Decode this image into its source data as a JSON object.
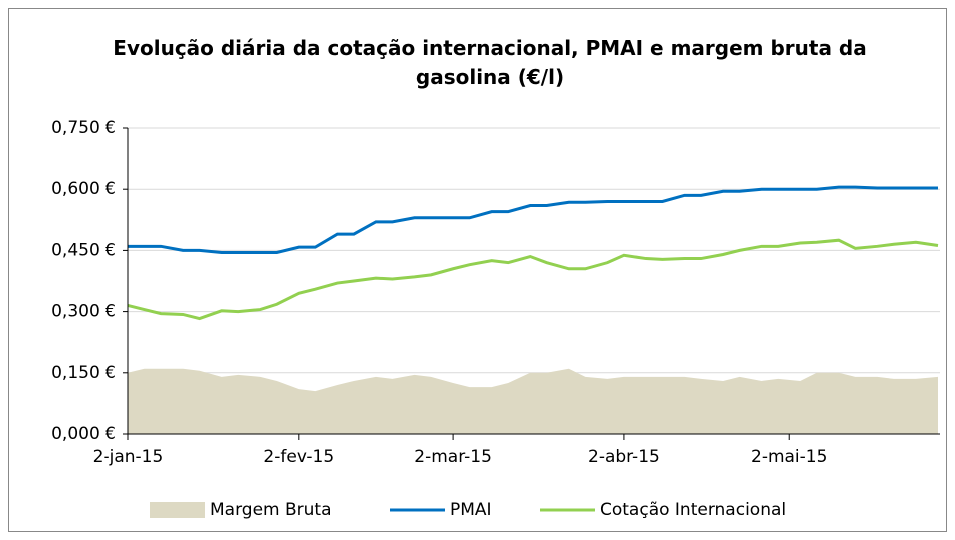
{
  "chart_data": {
    "type": "line",
    "title": "Evolução diária da cotação internacional, PMAI e margem bruta da gasolina (€/l)",
    "x": [
      "2015-01-02",
      "2015-01-05",
      "2015-01-08",
      "2015-01-12",
      "2015-01-15",
      "2015-01-19",
      "2015-01-22",
      "2015-01-26",
      "2015-01-29",
      "2015-02-02",
      "2015-02-05",
      "2015-02-09",
      "2015-02-12",
      "2015-02-16",
      "2015-02-19",
      "2015-02-23",
      "2015-02-26",
      "2015-03-02",
      "2015-03-05",
      "2015-03-09",
      "2015-03-12",
      "2015-03-16",
      "2015-03-19",
      "2015-03-23",
      "2015-03-26",
      "2015-03-30",
      "2015-04-02",
      "2015-04-06",
      "2015-04-09",
      "2015-04-13",
      "2015-04-16",
      "2015-04-20",
      "2015-04-23",
      "2015-04-27",
      "2015-04-30",
      "2015-05-04",
      "2015-05-07",
      "2015-05-11",
      "2015-05-14",
      "2015-05-18",
      "2015-05-21",
      "2015-05-25",
      "2015-05-29"
    ],
    "series": [
      {
        "name": "Margem Bruta",
        "kind": "area",
        "color": "#ddd9c3",
        "values": [
          0.15,
          0.16,
          0.16,
          0.16,
          0.155,
          0.14,
          0.145,
          0.14,
          0.13,
          0.11,
          0.105,
          0.12,
          0.13,
          0.14,
          0.135,
          0.145,
          0.14,
          0.125,
          0.115,
          0.115,
          0.125,
          0.15,
          0.15,
          0.16,
          0.14,
          0.135,
          0.14,
          0.14,
          0.14,
          0.14,
          0.135,
          0.13,
          0.14,
          0.13,
          0.135,
          0.13,
          0.15,
          0.15,
          0.14,
          0.14,
          0.135,
          0.135,
          0.14
        ]
      },
      {
        "name": "PMAI",
        "kind": "line",
        "color": "#0070c0",
        "values": [
          0.46,
          0.46,
          0.46,
          0.45,
          0.45,
          0.445,
          0.445,
          0.445,
          0.445,
          0.458,
          0.458,
          0.49,
          0.49,
          0.52,
          0.52,
          0.53,
          0.53,
          0.53,
          0.53,
          0.545,
          0.545,
          0.56,
          0.56,
          0.568,
          0.568,
          0.57,
          0.57,
          0.57,
          0.57,
          0.585,
          0.585,
          0.595,
          0.595,
          0.6,
          0.6,
          0.6,
          0.6,
          0.605,
          0.605,
          0.603,
          0.603,
          0.603,
          0.603
        ]
      },
      {
        "name": "Cotação Internacional",
        "kind": "line",
        "color": "#92d050",
        "values": [
          0.315,
          0.305,
          0.295,
          0.293,
          0.283,
          0.302,
          0.3,
          0.305,
          0.318,
          0.345,
          0.355,
          0.37,
          0.375,
          0.382,
          0.38,
          0.385,
          0.39,
          0.405,
          0.415,
          0.425,
          0.42,
          0.435,
          0.42,
          0.405,
          0.405,
          0.42,
          0.438,
          0.43,
          0.428,
          0.43,
          0.43,
          0.44,
          0.45,
          0.46,
          0.46,
          0.468,
          0.47,
          0.475,
          0.455,
          0.46,
          0.465,
          0.47,
          0.462
        ]
      }
    ],
    "xlim": [
      "2015-01-02",
      "2015-05-29"
    ],
    "xticks": [
      {
        "value": "2015-01-02",
        "label": "2-jan-15"
      },
      {
        "value": "2015-02-02",
        "label": "2-fev-15"
      },
      {
        "value": "2015-03-02",
        "label": "2-mar-15"
      },
      {
        "value": "2015-04-02",
        "label": "2-abr-15"
      },
      {
        "value": "2015-05-02",
        "label": "2-mai-15"
      }
    ],
    "ylim": [
      0,
      0.75
    ],
    "yticks": [
      {
        "value": 0,
        "label": "0,000 €"
      },
      {
        "value": 0.15,
        "label": "0,150 €"
      },
      {
        "value": 0.3,
        "label": "0,300 €"
      },
      {
        "value": 0.45,
        "label": "0,450 €"
      },
      {
        "value": 0.6,
        "label": "0,600 €"
      },
      {
        "value": 0.75,
        "label": "0,750 €"
      }
    ],
    "grid": true,
    "legend": "bottom"
  }
}
